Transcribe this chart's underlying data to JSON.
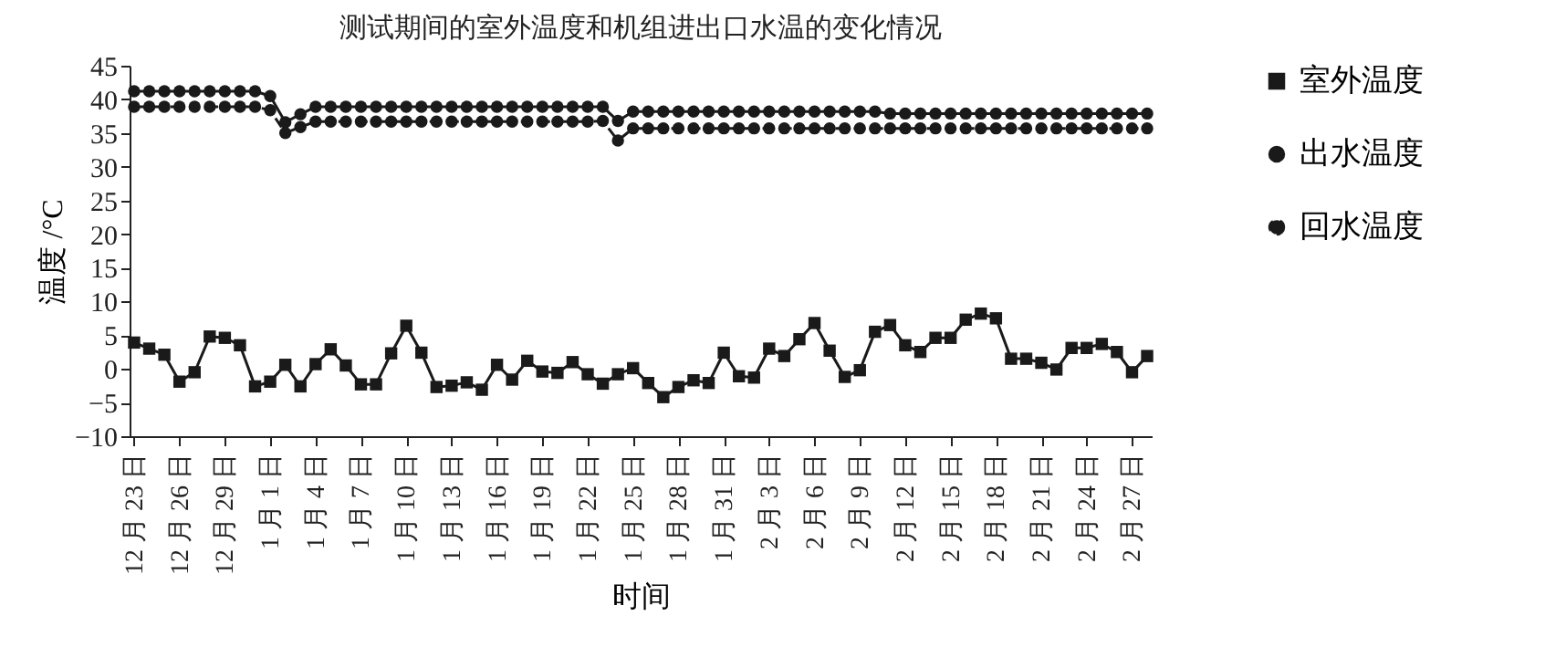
{
  "chart_data": {
    "type": "line",
    "title": "测试期间的室外温度和机组进出口水温的变化情况",
    "xlabel": "时间",
    "ylabel": "温度 /°C",
    "categories": [
      "12 月 23 日",
      null,
      null,
      "12 月 26 日",
      null,
      null,
      "12 月 29 日",
      null,
      null,
      "1 月 1 日",
      null,
      null,
      "1 月 4 日",
      null,
      null,
      "1 月 7 日",
      null,
      null,
      "1 月 10 日",
      null,
      null,
      "1 月 13 日",
      null,
      null,
      "1 月 16 日",
      null,
      null,
      "1 月 19 日",
      null,
      null,
      "1 月 22 日",
      null,
      null,
      "1 月 25 日",
      null,
      null,
      "1 月 28 日",
      null,
      null,
      "1 月 31 日",
      null,
      null,
      "2 月 3 日",
      null,
      null,
      "2 月 6 日",
      null,
      null,
      "2 月 9 日",
      null,
      null,
      "2 月 12 日",
      null,
      null,
      "2 月 15 日",
      null,
      null,
      "2 月 18 日",
      null,
      null,
      "2 月 21 日",
      null,
      null,
      "2 月 24 日",
      null,
      null,
      "2 月 27 日",
      null
    ],
    "series": [
      {
        "name": "室外温度",
        "color": "#1a1a1a",
        "marker": "square",
        "line_style": "solid",
        "values": [
          3.9,
          3.0,
          2.1,
          -1.9,
          -0.5,
          4.8,
          4.6,
          3.5,
          -2.6,
          -1.9,
          0.6,
          -2.6,
          0.7,
          2.9,
          0.5,
          -2.3,
          -2.3,
          2.3,
          6.4,
          2.4,
          -2.7,
          -2.5,
          -2.0,
          -3.1,
          0.6,
          -1.6,
          1.2,
          -0.4,
          -0.6,
          1.0,
          -0.8,
          -2.2,
          -0.8,
          0.1,
          -2.1,
          -4.2,
          -2.7,
          -1.7,
          -2.1,
          2.4,
          -1.1,
          -1.3,
          3.0,
          1.9,
          4.4,
          6.8,
          2.7,
          -1.2,
          -0.2,
          5.5,
          6.5,
          3.5,
          2.5,
          4.6,
          4.6,
          7.3,
          8.2,
          7.5,
          1.5,
          1.5,
          0.9,
          -0.1,
          3.1,
          3.1,
          3.7,
          2.5,
          -0.5,
          1.9
        ]
      },
      {
        "name": "出水温度",
        "color": "#1a1a1a",
        "marker": "circle",
        "line_style": "solid",
        "values": [
          41.2,
          41.2,
          41.2,
          41.2,
          41.2,
          41.2,
          41.2,
          41.2,
          41.2,
          40.5,
          36.6,
          37.8,
          38.9,
          38.9,
          38.9,
          38.9,
          38.9,
          38.9,
          38.9,
          38.9,
          38.9,
          38.9,
          38.9,
          38.9,
          38.9,
          38.9,
          38.9,
          38.9,
          38.9,
          38.9,
          38.9,
          38.9,
          36.8,
          38.2,
          38.2,
          38.2,
          38.2,
          38.2,
          38.2,
          38.2,
          38.2,
          38.2,
          38.2,
          38.2,
          38.2,
          38.2,
          38.2,
          38.2,
          38.2,
          38.2,
          37.9,
          37.9,
          37.9,
          37.9,
          37.9,
          37.9,
          37.9,
          37.9,
          37.9,
          37.9,
          37.9,
          37.9,
          37.9,
          37.9,
          37.9,
          37.9,
          37.9,
          37.9
        ]
      },
      {
        "name": "回水温度",
        "color": "#1a1a1a",
        "marker": "circle",
        "line_style": "dashed",
        "values": [
          38.9,
          38.9,
          38.9,
          38.9,
          38.9,
          38.9,
          38.9,
          38.9,
          38.9,
          38.4,
          35.0,
          35.9,
          36.7,
          36.7,
          36.7,
          36.7,
          36.7,
          36.7,
          36.7,
          36.7,
          36.7,
          36.7,
          36.7,
          36.7,
          36.7,
          36.7,
          36.7,
          36.7,
          36.7,
          36.7,
          36.7,
          36.8,
          33.9,
          35.7,
          35.7,
          35.7,
          35.7,
          35.7,
          35.7,
          35.7,
          35.7,
          35.7,
          35.7,
          35.7,
          35.7,
          35.7,
          35.7,
          35.7,
          35.7,
          35.7,
          35.7,
          35.7,
          35.7,
          35.7,
          35.7,
          35.7,
          35.7,
          35.7,
          35.7,
          35.7,
          35.7,
          35.7,
          35.7,
          35.7,
          35.7,
          35.7,
          35.7,
          35.7
        ]
      }
    ],
    "ylim": [
      -10,
      45
    ],
    "yticks": [
      -10,
      -5,
      0,
      5,
      10,
      15,
      20,
      25,
      30,
      35,
      40,
      45
    ],
    "grid": false,
    "legend": "right"
  }
}
